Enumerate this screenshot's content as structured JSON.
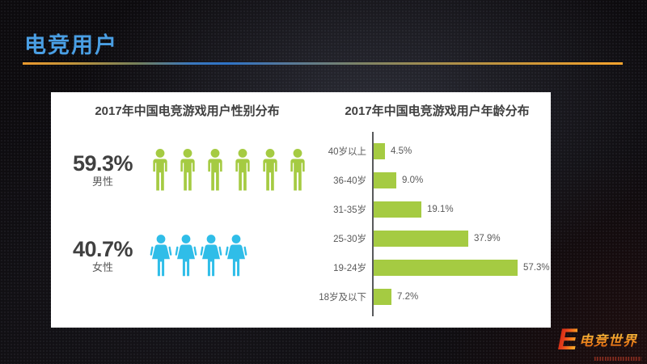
{
  "slide": {
    "title": "电竞用户",
    "logo": {
      "mark": "E",
      "name": "电竞世界"
    }
  },
  "colors": {
    "slide_title_blue": "#4A9FE4",
    "divider_orange": "#F0A032",
    "divider_blue": "#2E74C8",
    "panel_bg": "#FFFFFF",
    "chart_title_text": "#3F3F3F",
    "label_text": "#595959",
    "green": "#A5CB42",
    "cyan": "#2FBDE8",
    "logo_red": "#E8431C",
    "logo_gold": "#F5A623"
  },
  "chart_data": [
    {
      "type": "bar",
      "variant": "pictogram-people",
      "title": "2017年中国电竞游戏用户性别分布",
      "categories": [
        "男性",
        "女性"
      ],
      "values": [
        59.3,
        40.7
      ],
      "value_labels": [
        "59.3%",
        "40.7%"
      ],
      "icons": [
        {
          "glyph": "male-person",
          "count": 6,
          "color": "#A5CB42"
        },
        {
          "glyph": "female-person",
          "count": 4,
          "color": "#2FBDE8"
        }
      ],
      "grid": false,
      "legend": false
    },
    {
      "type": "bar",
      "orientation": "horizontal",
      "title": "2017年中国电竞游戏用户年龄分布",
      "categories": [
        "40岁以上",
        "36-40岁",
        "31-35岁",
        "25-30岁",
        "19-24岁",
        "18岁及以下"
      ],
      "values": [
        4.5,
        9.0,
        19.1,
        37.9,
        57.3,
        7.2
      ],
      "value_labels": [
        "4.5%",
        "9.0%",
        "19.1%",
        "37.9%",
        "57.3%",
        "7.2%"
      ],
      "xlim": [
        0,
        60
      ],
      "bar_color": "#A5CB42",
      "axis_color": "#58595B",
      "grid": false,
      "legend": false
    }
  ]
}
